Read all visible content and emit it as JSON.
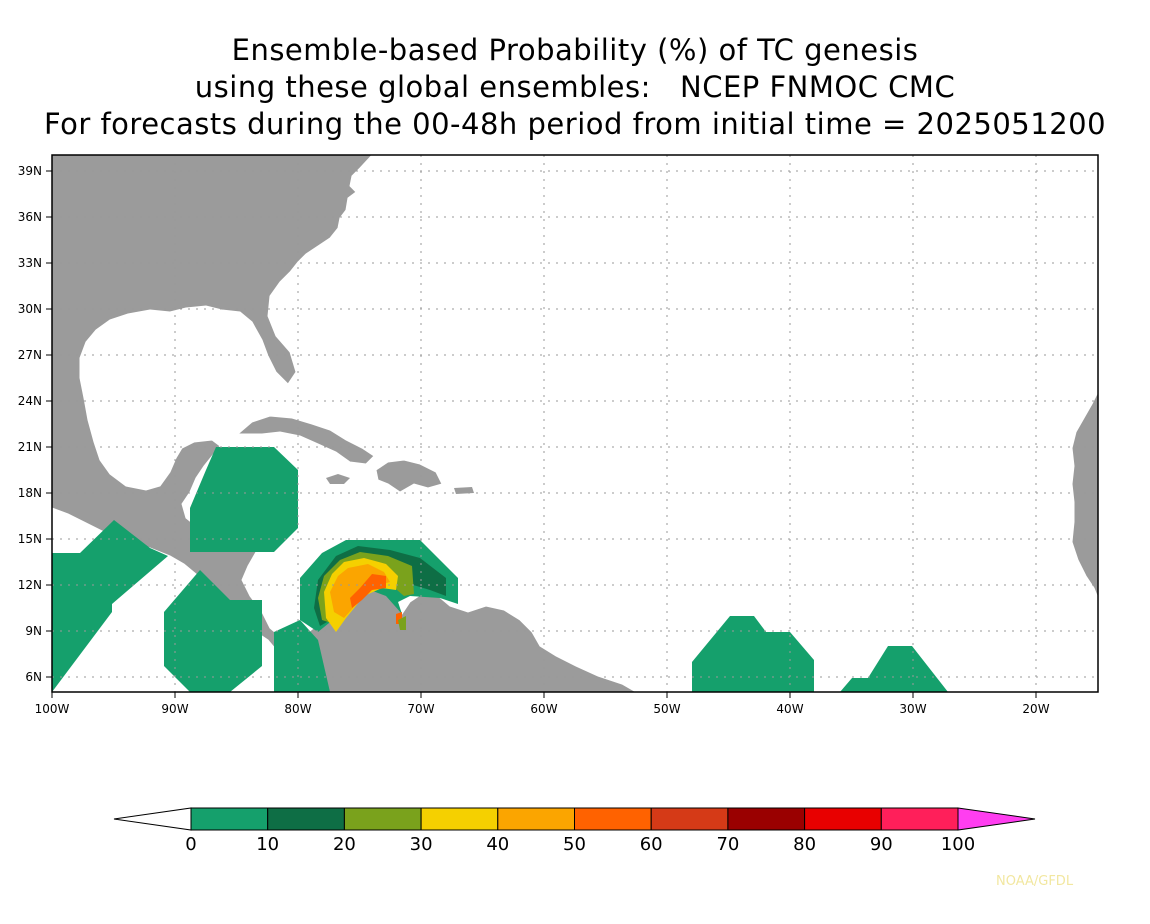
{
  "title": {
    "line1": "Ensemble-based Probability (%) of TC genesis",
    "line2": "using these global ensembles:   NCEP FNMOC CMC",
    "line3": "For forecasts during the 00-48h period from initial time = 2025051200"
  },
  "map": {
    "lon_range": [
      -100,
      -15
    ],
    "lat_range": [
      5,
      40
    ],
    "lat_labels": [
      "39N",
      "36N",
      "33N",
      "30N",
      "27N",
      "24N",
      "21N",
      "18N",
      "15N",
      "12N",
      "9N",
      "6N"
    ],
    "lon_labels": [
      "100W",
      "90W",
      "80W",
      "70W",
      "60W",
      "50W",
      "40W",
      "30W",
      "20W"
    ],
    "land_color": "#9b9b9b",
    "ocean_color": "#ffffff",
    "grid": "dotted"
  },
  "colorbar": {
    "labels": [
      "0",
      "10",
      "20",
      "30",
      "40",
      "50",
      "60",
      "70",
      "80",
      "90",
      "100"
    ],
    "colors": [
      "#15a06c",
      "#0e6e45",
      "#7aa21c",
      "#f5d000",
      "#fba500",
      "#ff6200",
      "#d53a17",
      "#9a0000",
      "#e80000",
      "#ff1f5a"
    ],
    "under_color": "#ffffff",
    "over_color": "#ff3ef0"
  },
  "credit": "NOAA/GFDL"
}
